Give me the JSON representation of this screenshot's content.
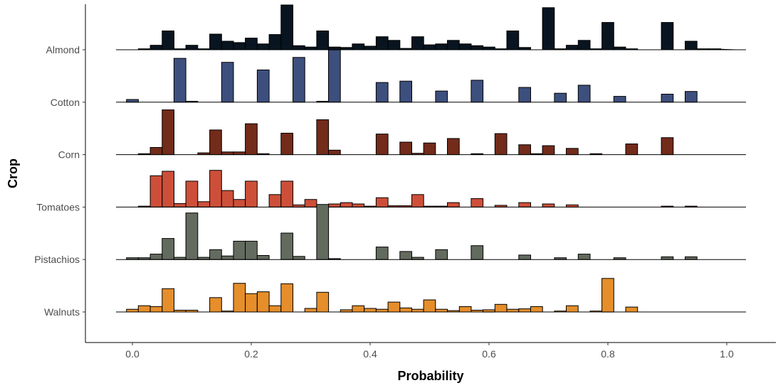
{
  "chart_data": {
    "type": "ridgeline-histogram",
    "xlabel": "Probability",
    "ylabel": "Crop",
    "xlim": [
      -0.08,
      1.08
    ],
    "x_ticks": [
      0.0,
      0.2,
      0.4,
      0.6,
      0.8,
      1.0
    ],
    "x_tick_labels": [
      "0.0",
      "0.2",
      "0.4",
      "0.6",
      "0.8",
      "1.0"
    ],
    "grid": false,
    "legend": "none",
    "bin_start": -0.03,
    "bin_width": 0.02,
    "series": [
      {
        "name": "Almond",
        "color": "#08141f",
        "counts": [
          0,
          0,
          0.02,
          0.1,
          0.42,
          0.02,
          0.1,
          0.02,
          0.35,
          0.19,
          0.16,
          0.26,
          0.13,
          0.34,
          1.0,
          0.09,
          0.06,
          0.42,
          0.06,
          0.05,
          0.13,
          0.08,
          0.29,
          0.21,
          0.03,
          0.29,
          0.11,
          0.13,
          0.21,
          0.13,
          0.09,
          0.06,
          0.02,
          0.42,
          0.05,
          0.0,
          0.94,
          0.02,
          0.1,
          0.21,
          0.02,
          0.61,
          0.06,
          0.02,
          0.0,
          0.0,
          0.61,
          0.0,
          0.19,
          0.02,
          0.02
        ]
      },
      {
        "name": "Cotton",
        "color": "#3d4f7d",
        "counts": [
          0,
          0.06,
          0,
          0,
          0,
          0.98,
          0.02,
          0,
          0,
          0.89,
          0,
          0,
          0.72,
          0,
          0,
          1.0,
          0,
          0.02,
          1.17,
          0,
          0,
          0,
          0.44,
          0,
          0.47,
          0,
          0,
          0.25,
          0,
          0,
          0.49,
          0,
          0,
          0,
          0.33,
          0,
          0,
          0.2,
          0,
          0.38,
          0,
          0,
          0.13,
          0,
          0,
          0,
          0.18,
          0,
          0.24,
          0,
          0
        ]
      },
      {
        "name": "Corn",
        "color": "#732b1a",
        "counts": [
          0,
          0,
          0.02,
          0.16,
          1.0,
          0,
          0,
          0.04,
          0.55,
          0.06,
          0.06,
          0.69,
          0.02,
          0,
          0.48,
          0,
          0,
          0.78,
          0.1,
          0,
          0,
          0,
          0.46,
          0,
          0.28,
          0.03,
          0.26,
          0,
          0.36,
          0,
          0.02,
          0.0,
          0.47,
          0,
          0.22,
          0.02,
          0.2,
          0,
          0.14,
          0,
          0.02,
          0,
          0.0,
          0.24,
          0,
          0,
          0.38,
          0,
          0,
          0,
          0
        ]
      },
      {
        "name": "Tomatoes",
        "color": "#cd4f39",
        "counts": [
          0,
          0,
          0.02,
          0.7,
          0.8,
          0.08,
          0.58,
          0.12,
          0.82,
          0.37,
          0.17,
          0.58,
          0,
          0.28,
          0.58,
          0.05,
          0.17,
          0,
          0.07,
          0.1,
          0.07,
          0.02,
          0.21,
          0.03,
          0.03,
          0.28,
          0.02,
          0.02,
          0.1,
          0,
          0.19,
          0,
          0.04,
          0,
          0.1,
          0,
          0.07,
          0.0,
          0.05,
          0.0,
          0,
          0,
          0,
          0,
          0,
          0,
          0.02,
          0,
          0.02,
          0,
          0
        ]
      },
      {
        "name": "Pistachios",
        "color": "#636b5f",
        "counts": [
          0,
          0.04,
          0.04,
          0.12,
          0.47,
          0.05,
          1.04,
          0.05,
          0.22,
          0.08,
          0.41,
          0.41,
          0.09,
          0,
          0.59,
          0.07,
          0,
          1.23,
          0.02,
          0,
          0,
          0,
          0.28,
          0,
          0.18,
          0.05,
          0,
          0.22,
          0,
          0,
          0.31,
          0,
          0,
          0,
          0.1,
          0,
          0,
          0.04,
          0,
          0.12,
          0,
          0,
          0.04,
          0,
          0,
          0,
          0.06,
          0,
          0.06,
          0,
          0
        ]
      },
      {
        "name": "Walnuts",
        "color": "#e58e2b",
        "counts": [
          0,
          0.06,
          0.14,
          0.12,
          0.52,
          0.04,
          0.04,
          0,
          0.32,
          0.02,
          0.64,
          0.41,
          0.45,
          0.14,
          0.63,
          0.0,
          0.08,
          0.44,
          0,
          0.05,
          0.14,
          0.08,
          0.06,
          0.22,
          0.09,
          0.06,
          0.27,
          0.06,
          0.03,
          0.12,
          0.04,
          0.05,
          0.17,
          0.06,
          0.07,
          0.12,
          0.0,
          0.02,
          0.14,
          0.0,
          0.02,
          0.75,
          0.0,
          0.11,
          0,
          0,
          0,
          0,
          0,
          0,
          0
        ]
      }
    ]
  }
}
